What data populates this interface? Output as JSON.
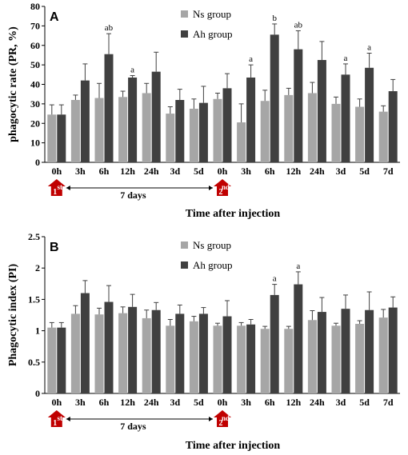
{
  "colors": {
    "ns": "#a6a6a6",
    "ah": "#404040",
    "marker": "#c00000",
    "error": "#404040"
  },
  "legend": {
    "ns": "Ns group",
    "ah": "Ah group"
  },
  "annotations": {
    "days": "7 days",
    "first_num": "1",
    "first_sup": "st",
    "second_num": "2",
    "second_sup": "nd"
  },
  "chart_data": [
    {
      "type": "bar",
      "panel": "A",
      "ylabel": "phagocytic rate (PR, %)",
      "xlabel": "Time after injection",
      "ylim": [
        0,
        80
      ],
      "yticks": [
        "0",
        "10",
        "20",
        "30",
        "40",
        "50",
        "60",
        "70",
        "80"
      ],
      "categories": [
        "0h",
        "3h",
        "6h",
        "12h",
        "24h",
        "3d",
        "5d",
        "0h",
        "3h",
        "6h",
        "12h",
        "24h",
        "3d",
        "5d",
        "7d"
      ],
      "series": [
        {
          "name": "Ns group",
          "values": [
            24.5,
            32,
            33,
            33.5,
            35.5,
            25,
            27.5,
            32.5,
            20.5,
            31.5,
            34.5,
            35.5,
            30,
            28.5,
            26
          ],
          "errors": [
            5,
            2.5,
            7.5,
            3,
            5,
            3.5,
            5,
            3,
            9.5,
            5.5,
            3.5,
            5.5,
            3.5,
            4,
            3
          ]
        },
        {
          "name": "Ah group",
          "values": [
            24.5,
            42,
            55.5,
            43.5,
            46.5,
            32,
            30.5,
            38,
            43.5,
            65.5,
            58,
            52.5,
            45,
            48.5,
            36.5
          ],
          "errors": [
            5,
            8.5,
            10.5,
            1,
            10,
            5.5,
            8.5,
            7.5,
            6.5,
            5.5,
            9.5,
            9.5,
            5.5,
            7.5,
            6
          ]
        }
      ],
      "labels": [
        "",
        "",
        "ab",
        "a",
        "",
        "",
        "",
        "",
        "a",
        "b",
        "ab",
        "",
        "a",
        "a",
        ""
      ]
    },
    {
      "type": "bar",
      "panel": "B",
      "ylabel": "Phagocytic index (PI)",
      "xlabel": "Time after injection",
      "ylim": [
        0,
        2.5
      ],
      "yticks": [
        "0",
        "0.5",
        "1",
        "1.5",
        "2",
        "2.5"
      ],
      "categories": [
        "0h",
        "3h",
        "6h",
        "12h",
        "24h",
        "3d",
        "5d",
        "0h",
        "3h",
        "6h",
        "12h",
        "24h",
        "3d",
        "5d",
        "7d"
      ],
      "series": [
        {
          "name": "Ns group",
          "values": [
            1.05,
            1.27,
            1.26,
            1.28,
            1.2,
            1.08,
            1.15,
            1.08,
            1.08,
            1.03,
            1.03,
            1.17,
            1.08,
            1.11,
            1.21
          ],
          "errors": [
            0.08,
            0.13,
            0.1,
            0.1,
            0.13,
            0.1,
            0.08,
            0.04,
            0.05,
            0.04,
            0.04,
            0.15,
            0.04,
            0.05,
            0.13
          ]
        },
        {
          "name": "Ah group",
          "values": [
            1.05,
            1.6,
            1.46,
            1.38,
            1.33,
            1.27,
            1.27,
            1.23,
            1.1,
            1.57,
            1.74,
            1.3,
            1.35,
            1.33,
            1.37
          ],
          "errors": [
            0.08,
            0.2,
            0.26,
            0.2,
            0.12,
            0.14,
            0.1,
            0.25,
            0.08,
            0.17,
            0.2,
            0.23,
            0.22,
            0.29,
            0.17
          ]
        }
      ],
      "labels": [
        "",
        "",
        "",
        "",
        "",
        "",
        "",
        "",
        "",
        "a",
        "a",
        "",
        "",
        "",
        ""
      ]
    }
  ]
}
